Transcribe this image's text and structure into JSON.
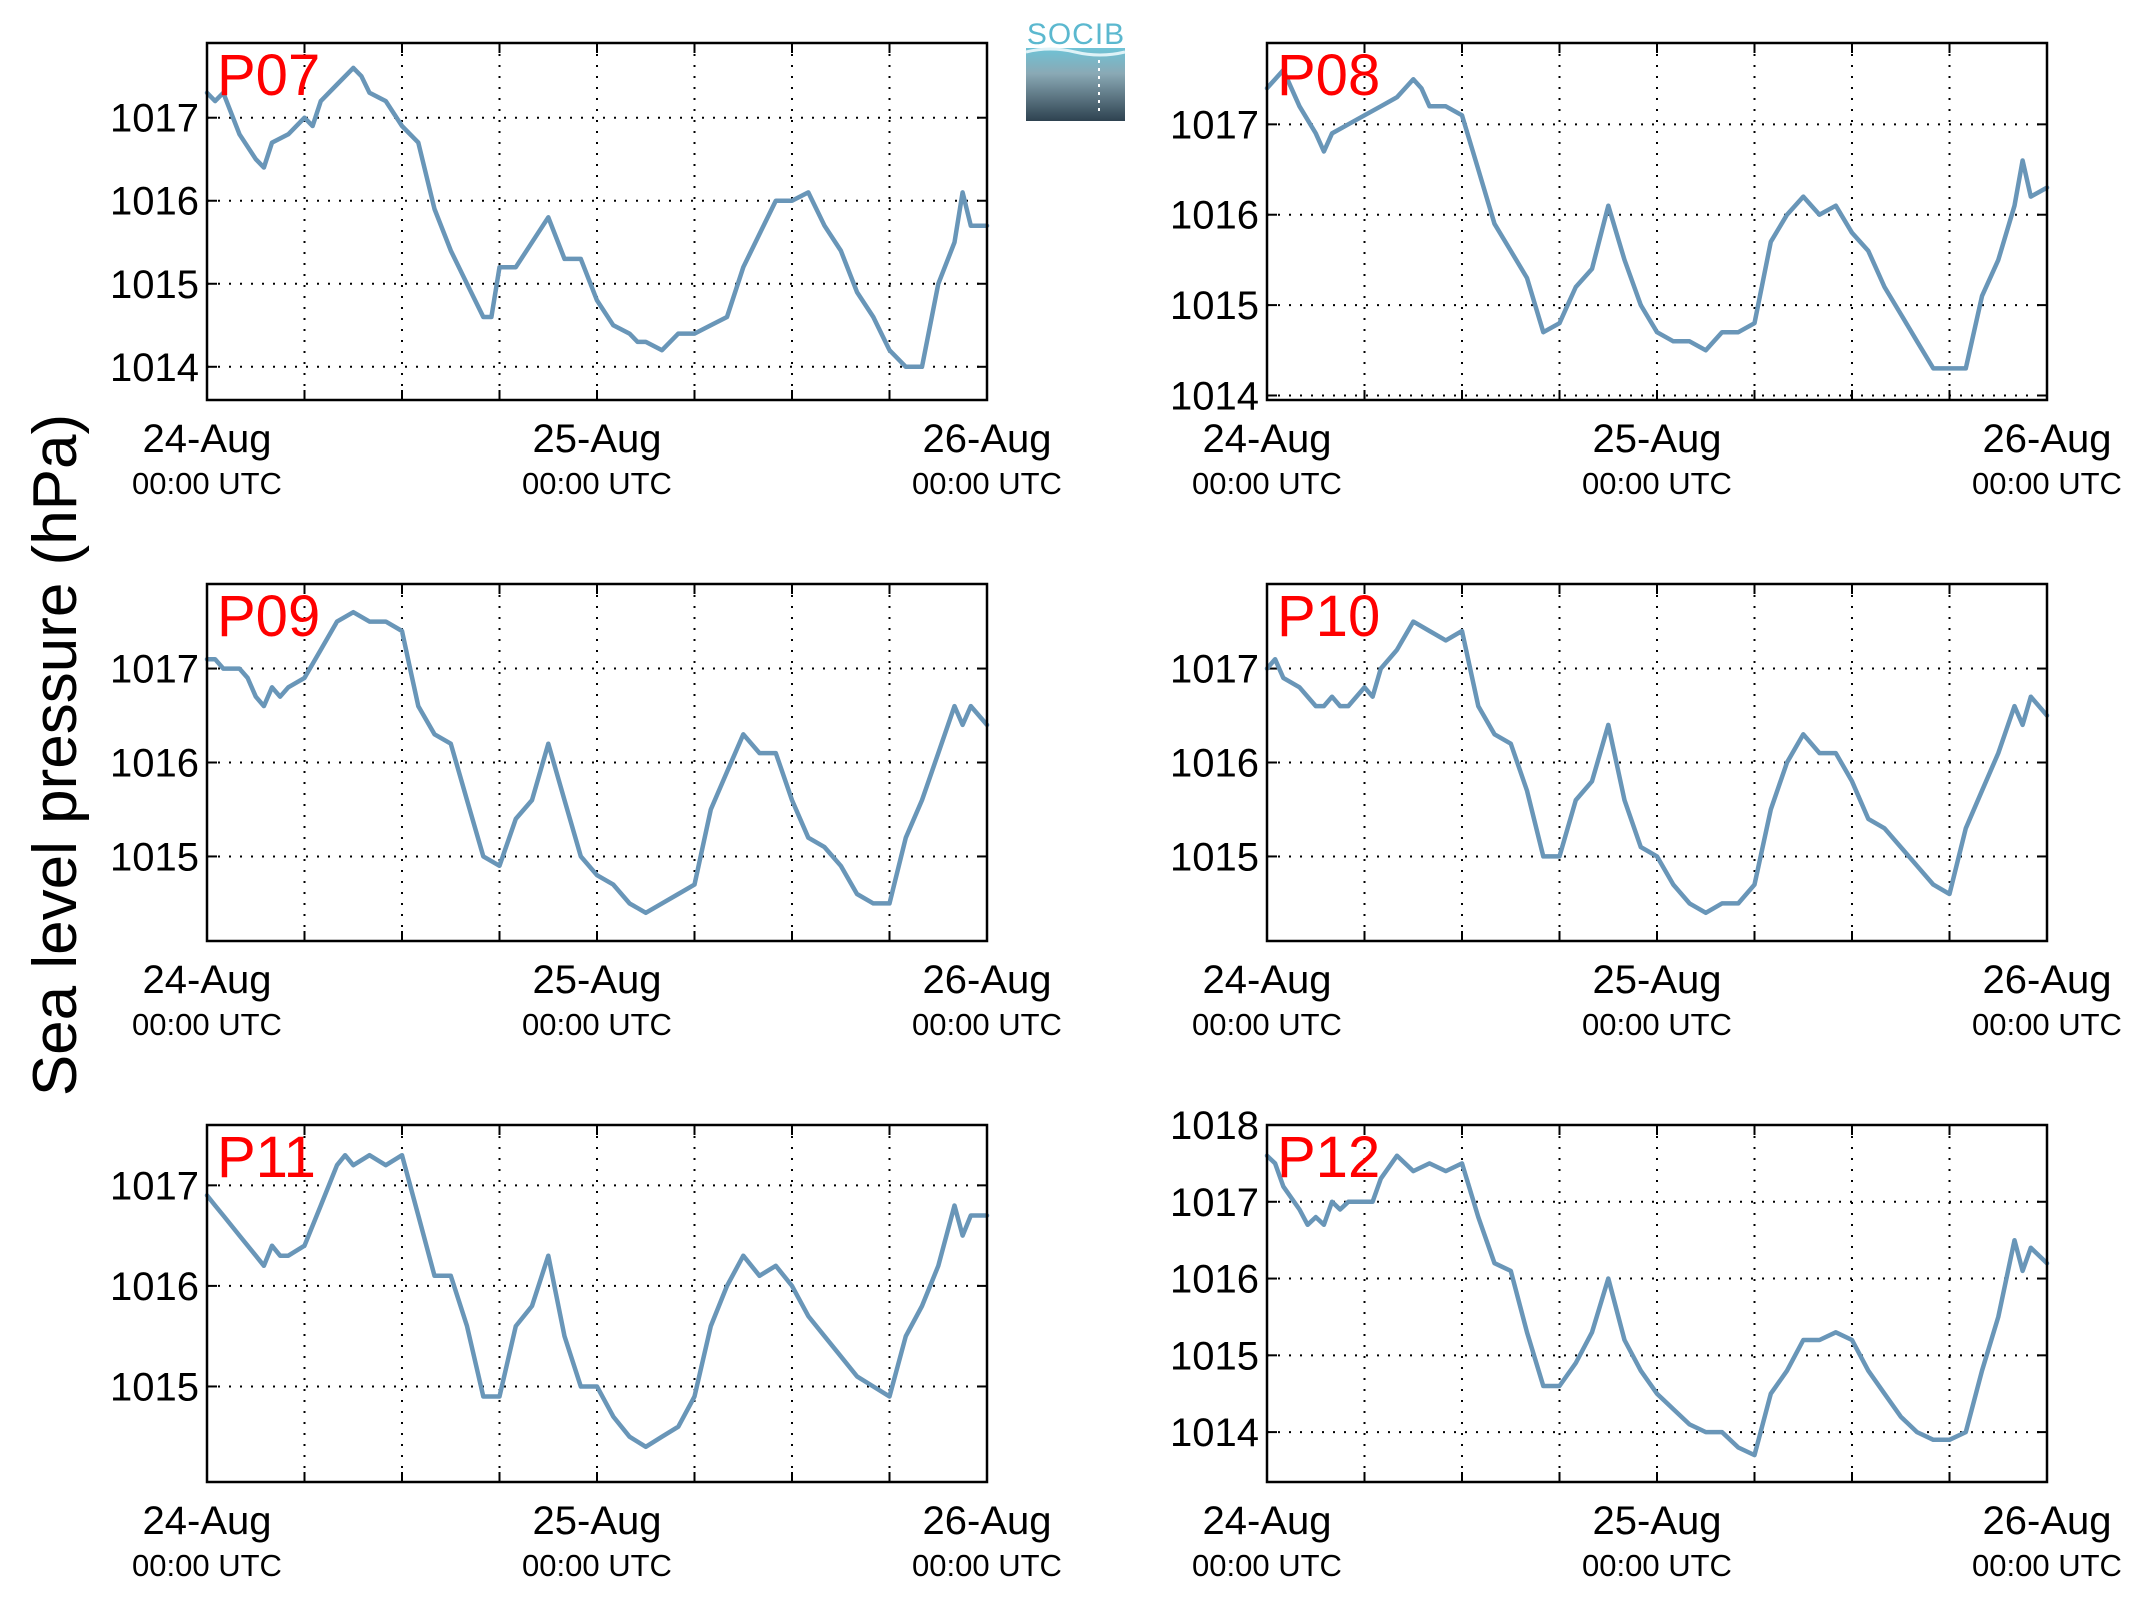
{
  "figure": {
    "ylabel": "Sea level pressure (hPa)",
    "logo_text": "SOCIB",
    "line_color": "#6996b8",
    "title_color": "#ff0000"
  },
  "chart_data": [
    {
      "type": "line",
      "title": "P07",
      "x_ticks": [
        {
          "main": "24-Aug",
          "sub": "00:00 UTC"
        },
        {
          "main": "25-Aug",
          "sub": "00:00 UTC"
        },
        {
          "main": "26-Aug",
          "sub": "00:00 UTC"
        }
      ],
      "xlim": [
        0,
        48
      ],
      "x_grid": [
        6,
        12,
        18,
        24,
        30,
        36,
        42
      ],
      "ylim": [
        1013.6,
        1017.9
      ],
      "y_ticks": [
        1014,
        1015,
        1016,
        1017
      ],
      "grid": true,
      "x_unit": "hours since 24-Aug 00:00 UTC",
      "series": [
        {
          "x": [
            0,
            0.5,
            1,
            2,
            3,
            3.5,
            4,
            5,
            6,
            6.5,
            7,
            8,
            9,
            9.5,
            10,
            11,
            12,
            13,
            14,
            15,
            16,
            17,
            17.5,
            18,
            19,
            20,
            21,
            22,
            23,
            24,
            25,
            26,
            26.5,
            27,
            28,
            29,
            30,
            31,
            32,
            33,
            34,
            35,
            36,
            37,
            38,
            39,
            40,
            41,
            41.5,
            42,
            43,
            44,
            45,
            46,
            46.5,
            47,
            48
          ],
          "y": [
            1017.3,
            1017.2,
            1017.3,
            1016.8,
            1016.5,
            1016.4,
            1016.7,
            1016.8,
            1017.0,
            1016.9,
            1017.2,
            1017.4,
            1017.6,
            1017.5,
            1017.3,
            1017.2,
            1016.9,
            1016.7,
            1015.9,
            1015.4,
            1015.0,
            1014.6,
            1014.6,
            1015.2,
            1015.2,
            1015.5,
            1015.8,
            1015.3,
            1015.3,
            1014.8,
            1014.5,
            1014.4,
            1014.3,
            1014.3,
            1014.2,
            1014.4,
            1014.4,
            1014.5,
            1014.6,
            1015.2,
            1015.6,
            1016.0,
            1016.0,
            1016.1,
            1015.7,
            1015.4,
            1014.9,
            1014.6,
            1014.4,
            1014.2,
            1014.0,
            1014.0,
            1015.0,
            1015.5,
            1016.1,
            1015.7,
            1015.7
          ]
        }
      ]
    },
    {
      "type": "line",
      "title": "P08",
      "x_ticks": [
        {
          "main": "24-Aug",
          "sub": "00:00 UTC"
        },
        {
          "main": "25-Aug",
          "sub": "00:00 UTC"
        },
        {
          "main": "26-Aug",
          "sub": "00:00 UTC"
        }
      ],
      "xlim": [
        0,
        48
      ],
      "x_grid": [
        6,
        12,
        18,
        24,
        30,
        36,
        42
      ],
      "ylim": [
        1013.95,
        1017.9
      ],
      "y_ticks": [
        1014,
        1015,
        1016,
        1017
      ],
      "grid": true,
      "x_unit": "hours since 24-Aug 00:00 UTC",
      "series": [
        {
          "x": [
            0,
            0.5,
            1,
            2,
            3,
            3.5,
            4,
            5,
            6,
            7,
            8,
            9,
            9.5,
            10,
            11,
            12,
            13,
            14,
            15,
            16,
            17,
            18,
            18.5,
            19,
            20,
            21,
            22,
            23,
            24,
            25,
            26,
            27,
            28,
            29,
            30,
            31,
            32,
            33,
            34,
            35,
            36,
            37,
            38,
            39,
            40,
            41,
            42,
            43,
            44,
            45,
            46,
            46.5,
            47,
            48
          ],
          "y": [
            1017.4,
            1017.5,
            1017.6,
            1017.2,
            1016.9,
            1016.7,
            1016.9,
            1017.0,
            1017.1,
            1017.2,
            1017.3,
            1017.5,
            1017.4,
            1017.2,
            1017.2,
            1017.1,
            1016.5,
            1015.9,
            1015.6,
            1015.3,
            1014.7,
            1014.8,
            1015.0,
            1015.2,
            1015.4,
            1016.1,
            1015.5,
            1015.0,
            1014.7,
            1014.6,
            1014.6,
            1014.5,
            1014.7,
            1014.7,
            1014.8,
            1015.7,
            1016.0,
            1016.2,
            1016.0,
            1016.1,
            1015.8,
            1015.6,
            1015.2,
            1014.9,
            1014.6,
            1014.3,
            1014.3,
            1014.3,
            1015.1,
            1015.5,
            1016.1,
            1016.6,
            1016.2,
            1016.3
          ]
        }
      ]
    },
    {
      "type": "line",
      "title": "P09",
      "x_ticks": [
        {
          "main": "24-Aug",
          "sub": "00:00 UTC"
        },
        {
          "main": "25-Aug",
          "sub": "00:00 UTC"
        },
        {
          "main": "26-Aug",
          "sub": "00:00 UTC"
        }
      ],
      "xlim": [
        0,
        48
      ],
      "x_grid": [
        6,
        12,
        18,
        24,
        30,
        36,
        42
      ],
      "ylim": [
        1014.1,
        1017.9
      ],
      "y_ticks": [
        1015,
        1016,
        1017
      ],
      "grid": true,
      "x_unit": "hours since 24-Aug 00:00 UTC",
      "series": [
        {
          "x": [
            0,
            0.5,
            1,
            2,
            2.5,
            3,
            3.5,
            4,
            4.5,
            5,
            6,
            7,
            8,
            9,
            10,
            11,
            12,
            12.5,
            13,
            14,
            15,
            16,
            17,
            18,
            19,
            20,
            21,
            22,
            23,
            24,
            25,
            26,
            27,
            28,
            29,
            30,
            31,
            32,
            33,
            34,
            35,
            36,
            37,
            38,
            39,
            40,
            41,
            42,
            43,
            44,
            45,
            46,
            46.5,
            47,
            48
          ],
          "y": [
            1017.1,
            1017.1,
            1017.0,
            1017.0,
            1016.9,
            1016.7,
            1016.6,
            1016.8,
            1016.7,
            1016.8,
            1016.9,
            1017.2,
            1017.5,
            1017.6,
            1017.5,
            1017.5,
            1017.4,
            1017.0,
            1016.6,
            1016.3,
            1016.2,
            1015.6,
            1015.0,
            1014.9,
            1015.4,
            1015.6,
            1016.2,
            1015.6,
            1015.0,
            1014.8,
            1014.7,
            1014.5,
            1014.4,
            1014.5,
            1014.6,
            1014.7,
            1015.5,
            1015.9,
            1016.3,
            1016.1,
            1016.1,
            1015.6,
            1015.2,
            1015.1,
            1014.9,
            1014.6,
            1014.5,
            1014.5,
            1015.2,
            1015.6,
            1016.1,
            1016.6,
            1016.4,
            1016.6,
            1016.4
          ]
        }
      ]
    },
    {
      "type": "line",
      "title": "P10",
      "x_ticks": [
        {
          "main": "24-Aug",
          "sub": "00:00 UTC"
        },
        {
          "main": "25-Aug",
          "sub": "00:00 UTC"
        },
        {
          "main": "26-Aug",
          "sub": "00:00 UTC"
        }
      ],
      "xlim": [
        0,
        48
      ],
      "x_grid": [
        6,
        12,
        18,
        24,
        30,
        36,
        42
      ],
      "ylim": [
        1014.1,
        1017.9
      ],
      "y_ticks": [
        1015,
        1016,
        1017
      ],
      "grid": true,
      "x_unit": "hours since 24-Aug 00:00 UTC",
      "series": [
        {
          "x": [
            0,
            0.5,
            1,
            2,
            3,
            3.5,
            4,
            4.5,
            5,
            6,
            6.5,
            7,
            8,
            9,
            10,
            11,
            12,
            13,
            14,
            15,
            16,
            17,
            18,
            19,
            20,
            21,
            22,
            23,
            24,
            25,
            26,
            27,
            28,
            29,
            30,
            31,
            32,
            33,
            34,
            35,
            36,
            37,
            38,
            39,
            40,
            41,
            42,
            43,
            44,
            45,
            46,
            46.5,
            47,
            48
          ],
          "y": [
            1017.0,
            1017.1,
            1016.9,
            1016.8,
            1016.6,
            1016.6,
            1016.7,
            1016.6,
            1016.6,
            1016.8,
            1016.7,
            1017.0,
            1017.2,
            1017.5,
            1017.4,
            1017.3,
            1017.4,
            1016.6,
            1016.3,
            1016.2,
            1015.7,
            1015.0,
            1015.0,
            1015.6,
            1015.8,
            1016.4,
            1015.6,
            1015.1,
            1015.0,
            1014.7,
            1014.5,
            1014.4,
            1014.5,
            1014.5,
            1014.7,
            1015.5,
            1016.0,
            1016.3,
            1016.1,
            1016.1,
            1015.8,
            1015.4,
            1015.3,
            1015.1,
            1014.9,
            1014.7,
            1014.6,
            1015.3,
            1015.7,
            1016.1,
            1016.6,
            1016.4,
            1016.7,
            1016.5
          ]
        }
      ]
    },
    {
      "type": "line",
      "title": "P11",
      "x_ticks": [
        {
          "main": "24-Aug",
          "sub": "00:00 UTC"
        },
        {
          "main": "25-Aug",
          "sub": "00:00 UTC"
        },
        {
          "main": "26-Aug",
          "sub": "00:00 UTC"
        }
      ],
      "xlim": [
        0,
        48
      ],
      "x_grid": [
        6,
        12,
        18,
        24,
        30,
        36,
        42
      ],
      "ylim": [
        1014.05,
        1017.6
      ],
      "y_ticks": [
        1015,
        1016,
        1017
      ],
      "grid": true,
      "x_unit": "hours since 24-Aug 00:00 UTC",
      "series": [
        {
          "x": [
            0,
            0.5,
            1,
            2,
            3,
            3.5,
            4,
            4.5,
            5,
            6,
            7,
            8,
            8.5,
            9,
            10,
            11,
            12,
            13,
            14,
            15,
            16,
            17,
            18,
            19,
            20,
            21,
            22,
            23,
            24,
            25,
            26,
            27,
            28,
            29,
            30,
            31,
            32,
            33,
            34,
            35,
            36,
            37,
            38,
            39,
            40,
            41,
            42,
            43,
            44,
            45,
            46,
            46.5,
            47,
            48
          ],
          "y": [
            1016.9,
            1016.8,
            1016.7,
            1016.5,
            1016.3,
            1016.2,
            1016.4,
            1016.3,
            1016.3,
            1016.4,
            1016.8,
            1017.2,
            1017.3,
            1017.2,
            1017.3,
            1017.2,
            1017.3,
            1016.7,
            1016.1,
            1016.1,
            1015.6,
            1014.9,
            1014.9,
            1015.6,
            1015.8,
            1016.3,
            1015.5,
            1015.0,
            1015.0,
            1014.7,
            1014.5,
            1014.4,
            1014.5,
            1014.6,
            1014.9,
            1015.6,
            1016.0,
            1016.3,
            1016.1,
            1016.2,
            1016.0,
            1015.7,
            1015.5,
            1015.3,
            1015.1,
            1015.0,
            1014.9,
            1015.5,
            1015.8,
            1016.2,
            1016.8,
            1016.5,
            1016.7,
            1016.7
          ]
        }
      ]
    },
    {
      "type": "line",
      "title": "P12",
      "x_ticks": [
        {
          "main": "24-Aug",
          "sub": "00:00 UTC"
        },
        {
          "main": "25-Aug",
          "sub": "00:00 UTC"
        },
        {
          "main": "26-Aug",
          "sub": "00:00 UTC"
        }
      ],
      "xlim": [
        0,
        48
      ],
      "x_grid": [
        6,
        12,
        18,
        24,
        30,
        36,
        42
      ],
      "ylim": [
        1013.35,
        1018.0
      ],
      "y_ticks": [
        1014,
        1015,
        1016,
        1017,
        1018
      ],
      "grid": true,
      "x_unit": "hours since 24-Aug 00:00 UTC",
      "series": [
        {
          "x": [
            0,
            0.5,
            1,
            2,
            2.5,
            3,
            3.5,
            4,
            4.5,
            5,
            6,
            6.5,
            7,
            8,
            9,
            10,
            11,
            12,
            13,
            14,
            15,
            16,
            17,
            18,
            19,
            20,
            21,
            22,
            23,
            24,
            25,
            26,
            27,
            28,
            29,
            30,
            31,
            32,
            33,
            34,
            35,
            36,
            37,
            38,
            39,
            40,
            41,
            42,
            43,
            44,
            45,
            46,
            46.5,
            47,
            48
          ],
          "y": [
            1017.6,
            1017.5,
            1017.2,
            1016.9,
            1016.7,
            1016.8,
            1016.7,
            1017.0,
            1016.9,
            1017.0,
            1017.0,
            1017.0,
            1017.3,
            1017.6,
            1017.4,
            1017.5,
            1017.4,
            1017.5,
            1016.8,
            1016.2,
            1016.1,
            1015.3,
            1014.6,
            1014.6,
            1014.9,
            1015.3,
            1016.0,
            1015.2,
            1014.8,
            1014.5,
            1014.3,
            1014.1,
            1014.0,
            1014.0,
            1013.8,
            1013.7,
            1014.5,
            1014.8,
            1015.2,
            1015.2,
            1015.3,
            1015.2,
            1014.8,
            1014.5,
            1014.2,
            1014.0,
            1013.9,
            1013.9,
            1014.0,
            1014.8,
            1015.5,
            1016.5,
            1016.1,
            1016.4,
            1016.2
          ]
        }
      ]
    }
  ]
}
